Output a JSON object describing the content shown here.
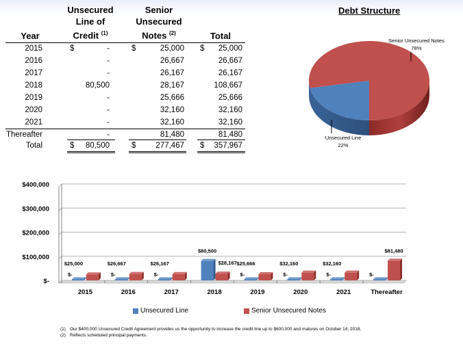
{
  "table": {
    "headers": {
      "year": "Year",
      "unsecured_line1": "Unsecured",
      "unsecured_line2": "Line of",
      "unsecured_line3": "Credit",
      "unsecured_note": "(1)",
      "senior_line1": "Senior",
      "senior_line2": "Unsecured",
      "senior_line3": "Notes",
      "senior_note": "(2)",
      "total": "Total"
    },
    "currency": "$",
    "rows": [
      {
        "year": "2015",
        "unsecured": "-",
        "senior": "25,000",
        "total": "25,000"
      },
      {
        "year": "2016",
        "unsecured": "-",
        "senior": "26,667",
        "total": "26,667"
      },
      {
        "year": "2017",
        "unsecured": "-",
        "senior": "26,167",
        "total": "26,167"
      },
      {
        "year": "2018",
        "unsecured": "80,500",
        "senior": "28,167",
        "total": "108,667"
      },
      {
        "year": "2019",
        "unsecured": "-",
        "senior": "25,666",
        "total": "25,666"
      },
      {
        "year": "2020",
        "unsecured": "-",
        "senior": "32,160",
        "total": "32,160"
      },
      {
        "year": "2021",
        "unsecured": "-",
        "senior": "32,160",
        "total": "32,160"
      },
      {
        "year": "Thereafter",
        "unsecured": "-",
        "senior": "81,480",
        "total": "81,480"
      }
    ],
    "total_row": {
      "label": "Total",
      "unsecured": "80,500",
      "senior": "277,467",
      "total": "357,967"
    }
  },
  "chart_data": [
    {
      "type": "pie",
      "title": "Debt Structure",
      "slices": [
        {
          "name": "Senior Unsecured Notes",
          "value": 78,
          "label": "78%",
          "color": "#c0504d"
        },
        {
          "name": "Unsecured Line",
          "value": 22,
          "label": "22%",
          "color": "#4f81bd"
        }
      ]
    },
    {
      "type": "bar",
      "categories": [
        "2015",
        "2016",
        "2017",
        "2018",
        "2019",
        "2020",
        "2021",
        "Thereafter"
      ],
      "series": [
        {
          "name": "Unsecured Line",
          "color": "#4f81bd",
          "values": [
            0,
            0,
            0,
            80500,
            0,
            0,
            0,
            0
          ],
          "labels": [
            "$-",
            "$-",
            "$-",
            "$80,500",
            "$-",
            "$-",
            "$-",
            "$-"
          ]
        },
        {
          "name": "Senior Unsecured Notes",
          "color": "#c0504d",
          "values": [
            25000,
            26667,
            26167,
            28167,
            25666,
            32160,
            32160,
            81480
          ],
          "labels": [
            "$25,000",
            "$26,667",
            "$26,167",
            "$28,167",
            "$25,666",
            "$32,160",
            "$32,160",
            "$81,480"
          ]
        }
      ],
      "ylim": [
        0,
        400000
      ],
      "yticks": [
        0,
        100000,
        200000,
        300000,
        400000
      ],
      "ytick_labels": [
        "$-",
        "$100,000",
        "$200,000",
        "$300,000",
        "$400,000"
      ],
      "grid": true,
      "legend": "bottom"
    }
  ],
  "footnotes": [
    {
      "mark": "(1)",
      "text": "Our $400,000 Unsecured Credit Agreement provides us the opportunity to increase the credit line up to $600,000 and matures on October 14, 2018."
    },
    {
      "mark": "(2)",
      "text": "Reflects scheduled principal payments."
    }
  ]
}
